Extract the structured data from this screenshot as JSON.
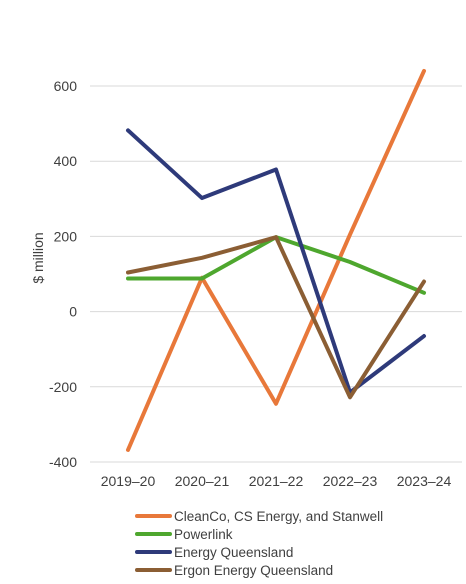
{
  "chart_data": {
    "type": "line",
    "categories": [
      "2019–20",
      "2020–21",
      "2021–22",
      "2022–23",
      "2023–24"
    ],
    "series": [
      {
        "name": "CleanCo, CS Energy, and Stanwell",
        "color": "#e8783a",
        "values": [
          -368,
          90,
          -245,
          205,
          640
        ]
      },
      {
        "name": "Powerlink",
        "color": "#4ea72e",
        "values": [
          88,
          88,
          198,
          132,
          50
        ]
      },
      {
        "name": "Energy Queensland",
        "color": "#2e3a7a",
        "values": [
          482,
          302,
          378,
          -215,
          -65
        ]
      },
      {
        "name": "Ergon Energy Queensland",
        "color": "#8b5e34",
        "values": [
          104,
          143,
          198,
          -228,
          80
        ]
      }
    ],
    "ylabel": "$ million",
    "ylim": [
      -400,
      600
    ],
    "yticks": [
      -400,
      -200,
      0,
      200,
      400,
      600
    ],
    "grid": true,
    "legend_position": "bottom"
  }
}
